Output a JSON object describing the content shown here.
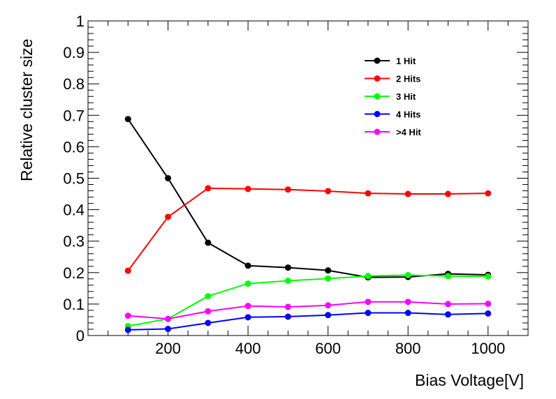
{
  "chart_data": {
    "type": "line",
    "title": "",
    "xlabel": "Bias Voltage[V]",
    "ylabel": "Relative cluster size",
    "xlim": [
      0,
      1100
    ],
    "ylim": [
      0,
      1
    ],
    "xticks": [
      200,
      400,
      600,
      800,
      1000
    ],
    "yticks": [
      0,
      0.1,
      0.2,
      0.3,
      0.4,
      0.5,
      0.6,
      0.7,
      0.8,
      0.9,
      1
    ],
    "ytick_labels": [
      "0",
      "0.1",
      "0.2",
      "0.3",
      "0.4",
      "0.5",
      "0.6",
      "0.7",
      "0.8",
      "0.9",
      "1"
    ],
    "grid": false,
    "legend_position": "top-right",
    "x": [
      100,
      200,
      300,
      400,
      500,
      600,
      700,
      800,
      900,
      1000
    ],
    "series": [
      {
        "name": "1 Hit",
        "color": "#000000",
        "values": [
          0.688,
          0.5,
          0.295,
          0.222,
          0.216,
          0.207,
          0.185,
          0.186,
          0.196,
          0.193
        ]
      },
      {
        "name": "2 Hits",
        "color": "#ff0000",
        "values": [
          0.206,
          0.377,
          0.468,
          0.466,
          0.464,
          0.459,
          0.452,
          0.45,
          0.45,
          0.452
        ]
      },
      {
        "name": "3 Hit",
        "color": "#00ff00",
        "values": [
          0.03,
          0.053,
          0.125,
          0.165,
          0.174,
          0.181,
          0.189,
          0.192,
          0.189,
          0.188
        ]
      },
      {
        "name": "4 Hits",
        "color": "#0000ff",
        "values": [
          0.018,
          0.021,
          0.04,
          0.058,
          0.06,
          0.065,
          0.072,
          0.072,
          0.067,
          0.07
        ]
      },
      {
        "name": ">4 Hit",
        "color": "#ff00ff",
        "values": [
          0.063,
          0.053,
          0.077,
          0.094,
          0.091,
          0.096,
          0.107,
          0.107,
          0.1,
          0.101
        ]
      }
    ]
  }
}
